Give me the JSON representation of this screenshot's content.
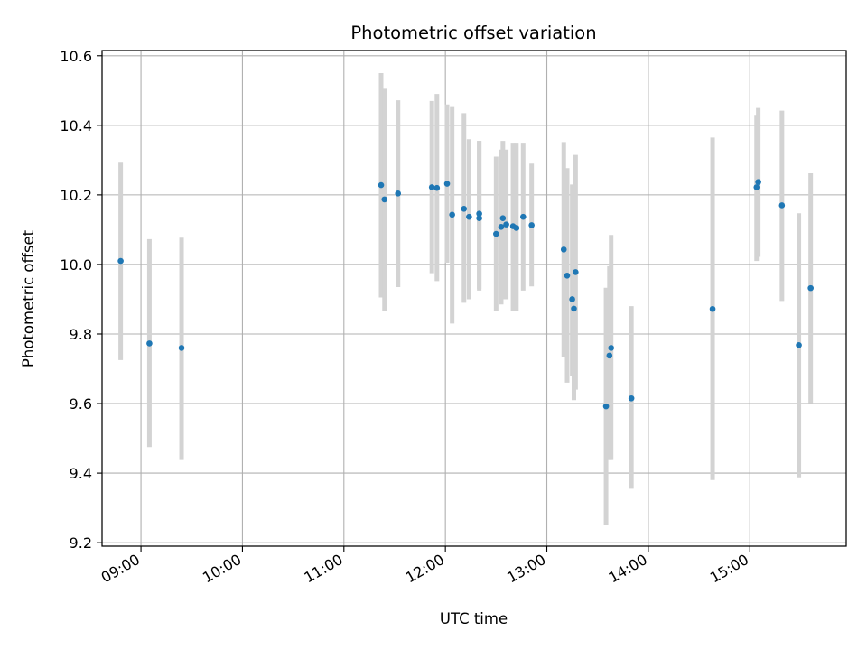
{
  "chart_data": {
    "type": "scatter",
    "title": "Photometric offset variation",
    "xlabel": "UTC time",
    "ylabel": "Photometric offset",
    "x_axis": "time",
    "xlim": [
      "08:37",
      "15:57"
    ],
    "ylim": [
      9.19,
      10.615
    ],
    "grid": true,
    "legend": "none",
    "x_ticks": [
      "09:00",
      "10:00",
      "11:00",
      "12:00",
      "13:00",
      "14:00",
      "15:00"
    ],
    "y_ticks": [
      "9.2",
      "9.4",
      "9.6",
      "9.8",
      "10.0",
      "10.2",
      "10.4",
      "10.6"
    ],
    "marker_color": "#1f77b4",
    "errorbar_color": "#d3d3d3",
    "points": [
      {
        "t": "08:48",
        "y": 10.01,
        "lo": 9.725,
        "hi": 10.295
      },
      {
        "t": "09:05",
        "y": 9.773,
        "lo": 9.475,
        "hi": 10.073
      },
      {
        "t": "09:24",
        "y": 9.76,
        "lo": 9.44,
        "hi": 10.077
      },
      {
        "t": "11:22",
        "y": 10.228,
        "lo": 9.905,
        "hi": 10.55
      },
      {
        "t": "11:24",
        "y": 10.187,
        "lo": 9.867,
        "hi": 10.505
      },
      {
        "t": "11:32",
        "y": 10.204,
        "lo": 9.935,
        "hi": 10.472
      },
      {
        "t": "11:52",
        "y": 10.222,
        "lo": 9.975,
        "hi": 10.47
      },
      {
        "t": "11:55",
        "y": 10.22,
        "lo": 9.952,
        "hi": 10.49
      },
      {
        "t": "12:01",
        "y": 10.232,
        "lo": 10.005,
        "hi": 10.46
      },
      {
        "t": "12:04",
        "y": 10.143,
        "lo": 9.83,
        "hi": 10.455
      },
      {
        "t": "12:11",
        "y": 10.16,
        "lo": 9.89,
        "hi": 10.435
      },
      {
        "t": "12:14",
        "y": 10.137,
        "lo": 9.9,
        "hi": 10.36
      },
      {
        "t": "12:20",
        "y": 10.133,
        "lo": 9.925,
        "hi": 10.355
      },
      {
        "t": "12:20",
        "y": 10.146,
        "lo": 9.93,
        "hi": 10.355
      },
      {
        "t": "12:30",
        "y": 10.088,
        "lo": 9.867,
        "hi": 10.31
      },
      {
        "t": "12:33",
        "y": 10.108,
        "lo": 9.885,
        "hi": 10.33
      },
      {
        "t": "12:34",
        "y": 10.133,
        "lo": 9.9,
        "hi": 10.355
      },
      {
        "t": "12:36",
        "y": 10.115,
        "lo": 9.9,
        "hi": 10.33
      },
      {
        "t": "12:40",
        "y": 10.11,
        "lo": 9.865,
        "hi": 10.35
      },
      {
        "t": "12:42",
        "y": 10.105,
        "lo": 9.865,
        "hi": 10.35
      },
      {
        "t": "12:46",
        "y": 10.137,
        "lo": 9.925,
        "hi": 10.35
      },
      {
        "t": "12:51",
        "y": 10.113,
        "lo": 9.937,
        "hi": 10.29
      },
      {
        "t": "13:10",
        "y": 10.043,
        "lo": 9.735,
        "hi": 10.352
      },
      {
        "t": "13:12",
        "y": 9.968,
        "lo": 9.66,
        "hi": 10.277
      },
      {
        "t": "13:15",
        "y": 9.9,
        "lo": 9.68,
        "hi": 10.23
      },
      {
        "t": "13:16",
        "y": 9.873,
        "lo": 9.61,
        "hi": 10.02
      },
      {
        "t": "13:17",
        "y": 9.978,
        "lo": 9.64,
        "hi": 10.315
      },
      {
        "t": "13:35",
        "y": 9.592,
        "lo": 9.25,
        "hi": 9.933
      },
      {
        "t": "13:37",
        "y": 9.738,
        "lo": 9.44,
        "hi": 9.995
      },
      {
        "t": "13:38",
        "y": 9.76,
        "lo": 9.44,
        "hi": 10.085
      },
      {
        "t": "13:50",
        "y": 9.615,
        "lo": 9.355,
        "hi": 9.88
      },
      {
        "t": "14:38",
        "y": 9.872,
        "lo": 9.38,
        "hi": 10.365
      },
      {
        "t": "15:04",
        "y": 10.222,
        "lo": 10.01,
        "hi": 10.43
      },
      {
        "t": "15:05",
        "y": 10.237,
        "lo": 10.022,
        "hi": 10.45
      },
      {
        "t": "15:19",
        "y": 10.17,
        "lo": 9.895,
        "hi": 10.442
      },
      {
        "t": "15:29",
        "y": 9.768,
        "lo": 9.388,
        "hi": 10.147
      },
      {
        "t": "15:36",
        "y": 9.932,
        "lo": 9.602,
        "hi": 10.262
      }
    ]
  }
}
